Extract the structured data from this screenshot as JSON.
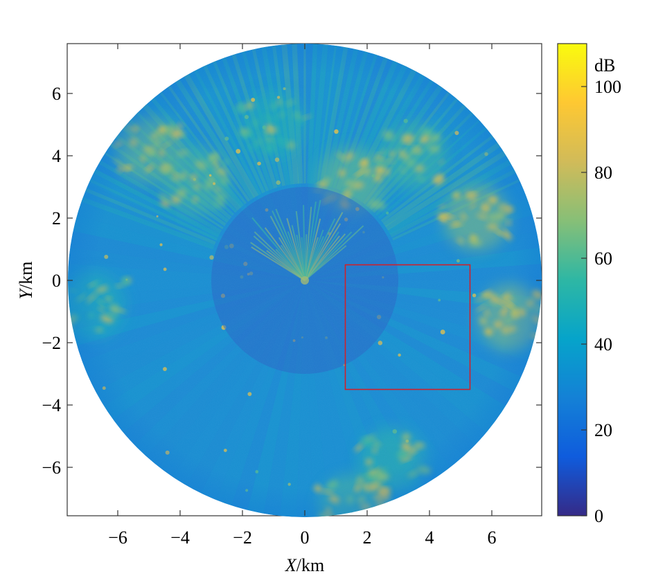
{
  "chart_data": {
    "type": "heatmap",
    "subtype": "polar radar intensity map",
    "xlabel": {
      "var": "X",
      "unit": "/km"
    },
    "ylabel": {
      "var": "Y",
      "unit": "/km"
    },
    "xlim": [
      -7.6,
      7.6
    ],
    "ylim": [
      -7.6,
      7.6
    ],
    "radius_km": 7.6,
    "x_ticks": [
      -6,
      -4,
      -2,
      0,
      2,
      4,
      6
    ],
    "y_ticks": [
      6,
      4,
      2,
      0,
      -2,
      -4,
      -6
    ],
    "x_tick_labels": [
      "−6",
      "−4",
      "−2",
      "0",
      "2",
      "4",
      "6"
    ],
    "y_tick_labels": [
      "6",
      "4",
      "2",
      "0",
      "−2",
      "−4",
      "−6"
    ],
    "grid": false,
    "colorbar": {
      "unit": "dB",
      "range": [
        0,
        110
      ],
      "ticks": [
        0,
        20,
        40,
        60,
        80,
        100
      ],
      "tick_labels": [
        "0",
        "20",
        "40",
        "60",
        "80",
        "100"
      ],
      "colormap": "parula",
      "colors": [
        "#352a87",
        "#0f5cdd",
        "#1481d6",
        "#06a4ca",
        "#2eb7a4",
        "#87bf77",
        "#d1bb59",
        "#fec832",
        "#f9fb0e"
      ]
    },
    "inner_blind_radius_km": 3.0,
    "highlight_box": {
      "x_range": [
        1.3,
        5.3
      ],
      "y_range": [
        -3.5,
        0.5
      ],
      "color": "#d0202a"
    },
    "strong_echo_regions": [
      {
        "x": -5.0,
        "y": 4.2,
        "level": 95
      },
      {
        "x": -3.5,
        "y": 3.2,
        "level": 90
      },
      {
        "x": -1.0,
        "y": 5.0,
        "level": 80
      },
      {
        "x": 1.5,
        "y": 3.2,
        "level": 95
      },
      {
        "x": 3.5,
        "y": 4.0,
        "level": 88
      },
      {
        "x": 5.5,
        "y": 2.0,
        "level": 100
      },
      {
        "x": 6.6,
        "y": -1.2,
        "level": 100
      },
      {
        "x": -6.8,
        "y": -0.8,
        "level": 80
      },
      {
        "x": 2.8,
        "y": -5.8,
        "level": 85
      },
      {
        "x": 1.5,
        "y": -7.3,
        "level": 90
      }
    ],
    "background_level": 38
  }
}
